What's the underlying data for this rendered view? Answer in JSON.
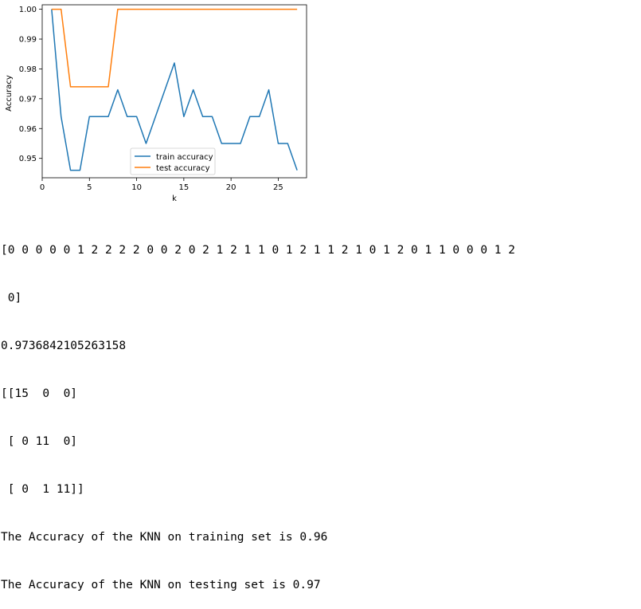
{
  "chart_data": {
    "type": "line",
    "xlabel": "k",
    "ylabel": "Accuracy",
    "xlim": [
      0,
      28
    ],
    "ylim": [
      0.9435,
      1.0015
    ],
    "x_ticks": [
      0,
      5,
      10,
      15,
      20,
      25
    ],
    "y_ticks": [
      0.95,
      0.96,
      0.97,
      0.98,
      0.99,
      1.0
    ],
    "x_tick_labels": [
      "0",
      "5",
      "10",
      "15",
      "20",
      "25"
    ],
    "y_tick_labels": [
      "0.95",
      "0.96",
      "0.97",
      "0.98",
      "0.99",
      "1.00"
    ],
    "grid": false,
    "legend_position": "lower-center",
    "series": [
      {
        "name": "train accuracy",
        "color": "#1f77b4",
        "x": [
          1,
          2,
          3,
          4,
          5,
          6,
          7,
          8,
          9,
          10,
          11,
          12,
          13,
          14,
          15,
          16,
          17,
          18,
          19,
          20,
          21,
          22,
          23,
          24,
          25,
          26,
          27
        ],
        "y": [
          1.0,
          0.964,
          0.946,
          0.946,
          0.964,
          0.964,
          0.964,
          0.973,
          0.964,
          0.964,
          0.955,
          0.964,
          0.973,
          0.982,
          0.964,
          0.973,
          0.964,
          0.964,
          0.955,
          0.955,
          0.955,
          0.964,
          0.964,
          0.973,
          0.955,
          0.955,
          0.946
        ]
      },
      {
        "name": "test accuracy",
        "color": "#ff7f0e",
        "x": [
          1,
          2,
          3,
          4,
          5,
          6,
          7,
          8,
          9,
          10,
          11,
          12,
          13,
          14,
          15,
          16,
          17,
          18,
          19,
          20,
          21,
          22,
          23,
          24,
          25,
          26,
          27
        ],
        "y": [
          1.0,
          1.0,
          0.974,
          0.974,
          0.974,
          0.974,
          0.974,
          1.0,
          1.0,
          1.0,
          1.0,
          1.0,
          1.0,
          1.0,
          1.0,
          1.0,
          1.0,
          1.0,
          1.0,
          1.0,
          1.0,
          1.0,
          1.0,
          1.0,
          1.0,
          1.0,
          1.0
        ]
      }
    ]
  },
  "console": {
    "lines": [
      "[0 0 0 0 0 1 2 2 2 2 0 0 2 0 2 1 2 1 1 0 1 2 1 1 2 1 0 1 2 0 1 1 0 0 0 1 2",
      " 0]",
      "0.9736842105263158",
      "[[15  0  0]",
      " [ 0 11  0]",
      " [ 0  1 11]]",
      "The Accuracy of the KNN on training set is 0.96",
      "The Accuracy of the KNN on testing set is 0.97"
    ]
  }
}
